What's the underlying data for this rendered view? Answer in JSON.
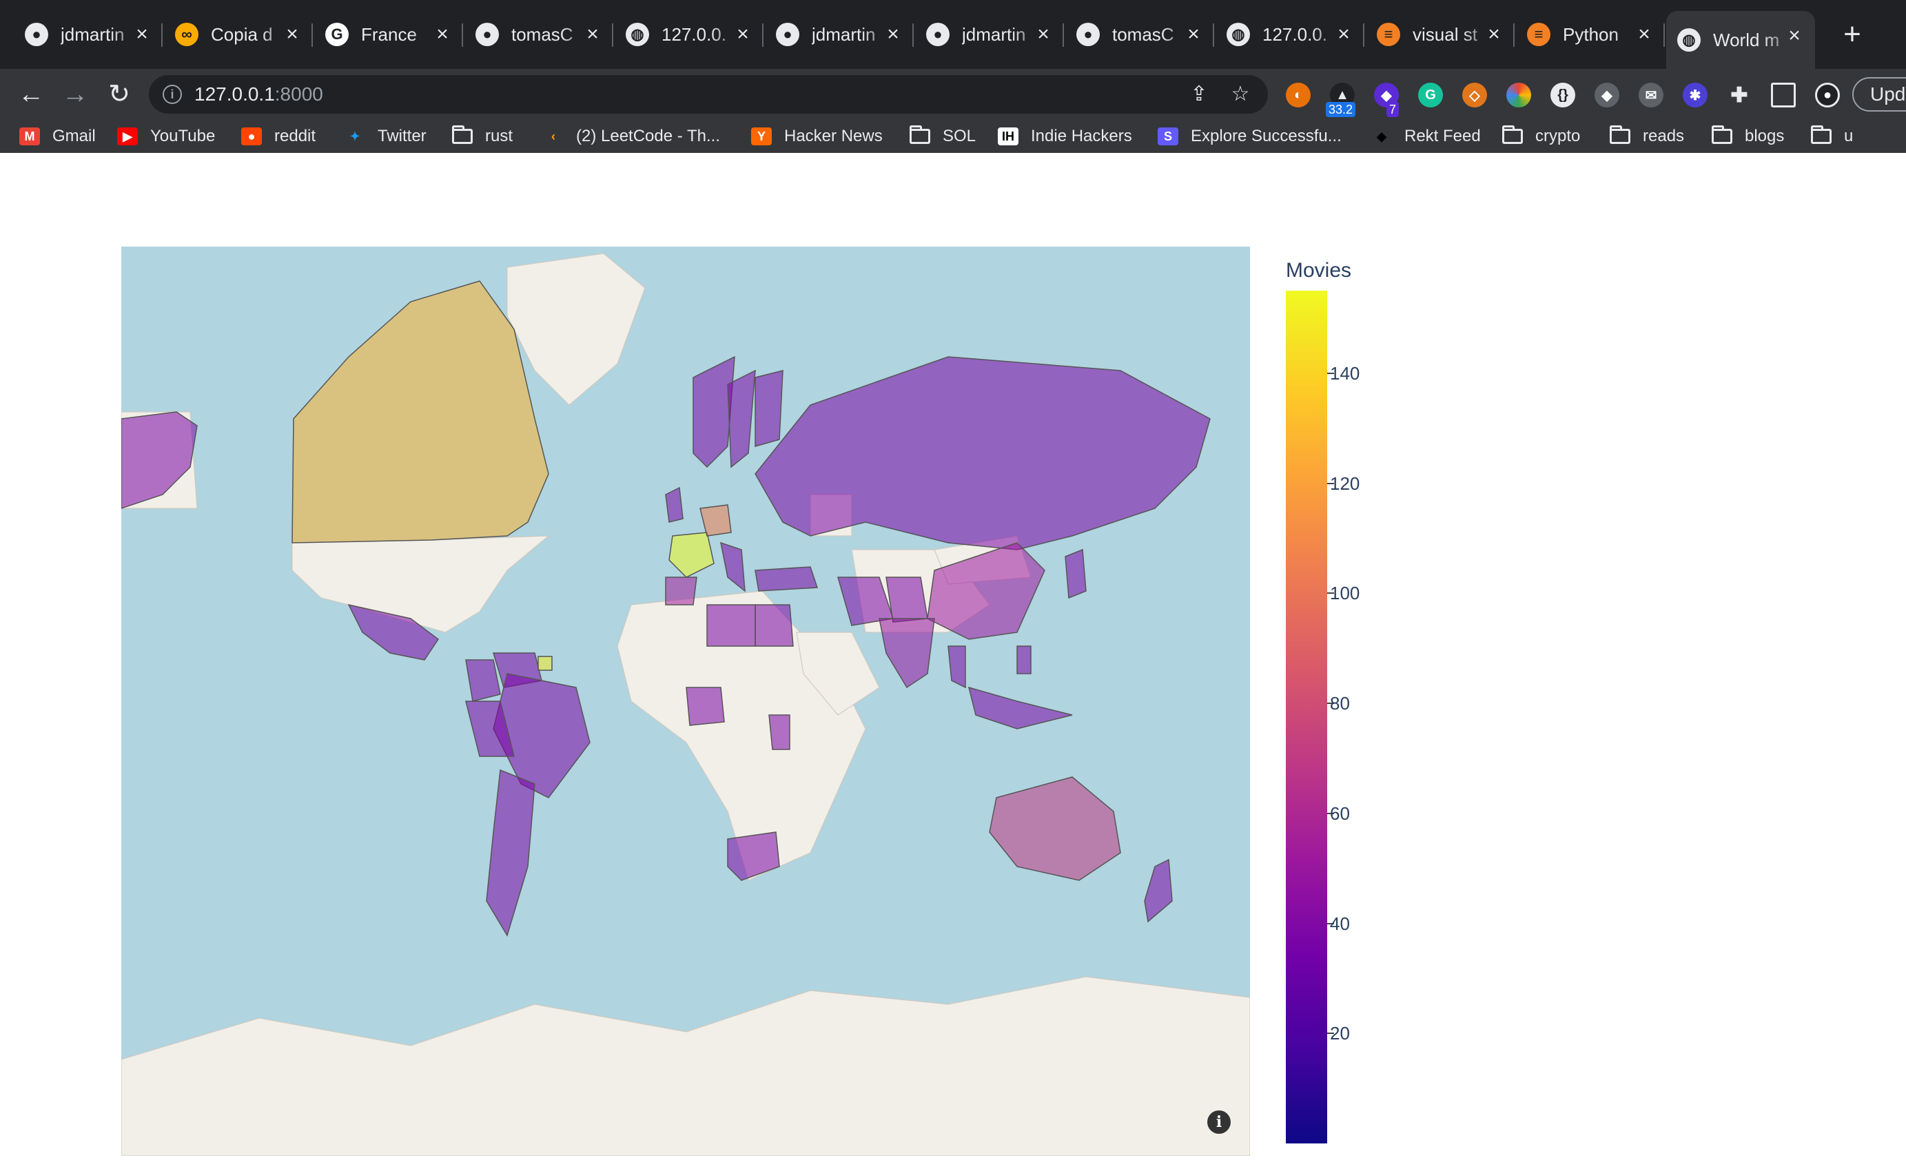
{
  "tabs": [
    {
      "label": "jdmartin",
      "icon": "github-icon"
    },
    {
      "label": "Copia d",
      "icon": "colab-icon"
    },
    {
      "label": "France",
      "icon": "google-icon"
    },
    {
      "label": "tomasC",
      "icon": "github-icon"
    },
    {
      "label": "127.0.0.",
      "icon": "globe-icon"
    },
    {
      "label": "jdmartin",
      "icon": "github-icon"
    },
    {
      "label": "jdmartin",
      "icon": "github-icon"
    },
    {
      "label": "tomasC",
      "icon": "github-icon"
    },
    {
      "label": "127.0.0.",
      "icon": "globe-icon"
    },
    {
      "label": "visual st",
      "icon": "stackoverflow-icon"
    },
    {
      "label": "Python",
      "icon": "stackoverflow-icon"
    },
    {
      "label": "World m",
      "icon": "globe-icon",
      "active": true
    }
  ],
  "toolbar": {
    "url_host": "127.0.0.1",
    "url_port": ":8000",
    "ext_badge_1": "33.2",
    "ext_badge_2": "7",
    "update_label": "Upd"
  },
  "bookmarks": [
    {
      "label": "Gmail",
      "icon": "gmail-icon"
    },
    {
      "label": "YouTube",
      "icon": "youtube-icon"
    },
    {
      "label": "reddit",
      "icon": "reddit-icon"
    },
    {
      "label": "Twitter",
      "icon": "twitter-icon"
    },
    {
      "label": "rust",
      "icon": "folder-icon"
    },
    {
      "label": "(2) LeetCode - Th...",
      "icon": "leetcode-icon"
    },
    {
      "label": "Hacker News",
      "icon": "hackernews-icon"
    },
    {
      "label": "SOL",
      "icon": "folder-icon"
    },
    {
      "label": "Indie Hackers",
      "icon": "indiehackers-icon"
    },
    {
      "label": "Explore Successfu...",
      "icon": "stripe-icon"
    },
    {
      "label": "Rekt Feed",
      "icon": "rekt-icon"
    },
    {
      "label": "crypto",
      "icon": "folder-icon"
    },
    {
      "label": "reads",
      "icon": "folder-icon"
    },
    {
      "label": "blogs",
      "icon": "folder-icon"
    },
    {
      "label": "u",
      "icon": "folder-icon"
    }
  ],
  "chart_data": {
    "type": "choropleth",
    "colorbar_title": "Movies",
    "colorscale": "plasma",
    "colorbar_range": [
      0,
      155
    ],
    "colorbar_ticks": [
      20,
      40,
      60,
      80,
      100,
      120,
      140
    ],
    "regions": [
      {
        "name": "France",
        "value": 155
      },
      {
        "name": "Suriname",
        "value": 150
      },
      {
        "name": "Canada",
        "value": 128
      },
      {
        "name": "Germany",
        "value": 105
      },
      {
        "name": "Australia",
        "value": 70
      },
      {
        "name": "Spain",
        "value": 55
      },
      {
        "name": "China",
        "value": 52
      },
      {
        "name": "India",
        "value": 48
      },
      {
        "name": "Russia",
        "value": 38
      },
      {
        "name": "Brazil",
        "value": 38
      },
      {
        "name": "Argentina",
        "value": 38
      },
      {
        "name": "Mexico",
        "value": 38
      },
      {
        "name": "USA (Alaska)",
        "value": 38
      },
      {
        "name": "South Africa",
        "value": 38
      },
      {
        "name": "Nigeria",
        "value": 38
      },
      {
        "name": "Egypt",
        "value": 38
      },
      {
        "name": "Libya",
        "value": 38
      },
      {
        "name": "Kenya",
        "value": 38
      },
      {
        "name": "Iran",
        "value": 38
      },
      {
        "name": "Pakistan",
        "value": 38
      },
      {
        "name": "Japan",
        "value": 38
      },
      {
        "name": "Indonesia",
        "value": 38
      },
      {
        "name": "Norway",
        "value": 38
      },
      {
        "name": "Sweden",
        "value": 38
      },
      {
        "name": "Finland",
        "value": 38
      },
      {
        "name": "UK",
        "value": 38
      },
      {
        "name": "Italy",
        "value": 38
      },
      {
        "name": "Turkey",
        "value": 38
      },
      {
        "name": "New Zealand",
        "value": 38
      },
      {
        "name": "Colombia",
        "value": 38
      },
      {
        "name": "Peru",
        "value": 38
      },
      {
        "name": "Venezuela",
        "value": 38
      },
      {
        "name": "Thailand",
        "value": 38
      },
      {
        "name": "Philippines",
        "value": 38
      }
    ]
  },
  "map_colors": {
    "ocean": "#b0d4e0",
    "land_nodata": "#f2efe9",
    "border": "#555555"
  }
}
